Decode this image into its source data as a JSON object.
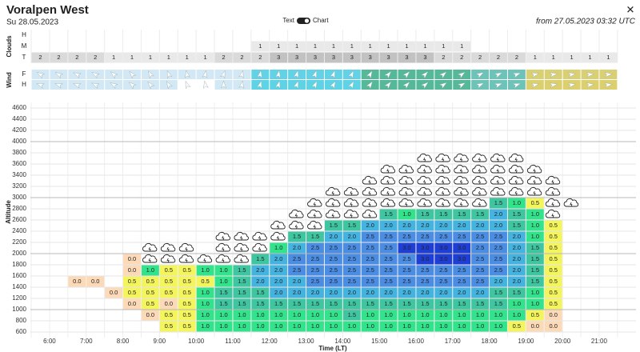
{
  "header": {
    "title": "Voralpen West",
    "date": "Su 28.05.2023",
    "toggle_left": "Text",
    "toggle_right": "Chart",
    "issued": "from 27.05.2023 03:32 UTC",
    "close": "✕"
  },
  "clouds": {
    "label": "Clouds",
    "row_labels": [
      "H",
      "M",
      "T"
    ],
    "rows": [
      [
        null,
        null,
        null,
        null,
        null,
        null,
        null,
        null,
        null,
        null,
        null,
        null,
        null,
        null,
        null,
        null,
        null,
        null,
        null,
        null,
        null,
        null,
        null,
        null,
        null,
        null,
        null,
        null,
        null,
        null,
        null,
        null
      ],
      [
        null,
        null,
        null,
        null,
        null,
        null,
        null,
        null,
        null,
        null,
        null,
        null,
        "1",
        "1",
        "1",
        "1",
        "1",
        "1",
        "1",
        "1",
        "1",
        "1",
        "1",
        "1",
        null,
        null,
        null,
        null,
        null,
        null,
        null,
        null
      ],
      [
        "2",
        "2",
        "2",
        "2",
        "1",
        "1",
        "1",
        "1",
        "1",
        "1",
        "2",
        "2",
        "2",
        "3",
        "3",
        "3",
        "3",
        "3",
        "3",
        "3",
        "3",
        "3",
        "2",
        "2",
        "2",
        "2",
        "2",
        "1",
        "1",
        "1",
        "1",
        "1"
      ]
    ],
    "colors": {
      "1": "#e9e9e9",
      "2": "#dadada",
      "3": "#c2c2c2"
    }
  },
  "wind": {
    "label": "Wind",
    "row_labels": [
      "F",
      "H"
    ],
    "rows": [
      {
        "colors": [
          "#d3e8f5",
          "#d3e8f5",
          "#d3e8f5",
          "#d3e8f5",
          "#d3e8f5",
          "#d3e8f5",
          "#d3e8f5",
          "#d3e8f5",
          "#d3e8f5",
          "#d3e8f5",
          "#d3e8f5",
          "#d3e8f5",
          "#62d2e6",
          "#62d2e6",
          "#62d2e6",
          "#62d2e6",
          "#62d2e6",
          "#62d2e6",
          "#55b898",
          "#55b898",
          "#55b898",
          "#55b898",
          "#55b898",
          "#55b898",
          "#6cc4b8",
          "#6cc4b8",
          "#6cc4b8",
          "#d9cf73",
          "#d9cf73",
          "#d9cf73",
          "#d9cf73",
          "#d9cf73"
        ],
        "directions": [
          300,
          300,
          295,
          300,
          310,
          320,
          330,
          340,
          350,
          10,
          20,
          15,
          10,
          10,
          15,
          20,
          20,
          25,
          30,
          40,
          45,
          45,
          50,
          55,
          60,
          65,
          70,
          75,
          80,
          80,
          85,
          85
        ]
      },
      {
        "colors": [
          "#d3e8f5",
          "#d3e8f5",
          "#d3e8f5",
          "#d3e8f5",
          "#d3e8f5",
          "#d3e8f5",
          "#d3e8f5",
          "#d3e8f5",
          "#ffffff",
          "#ffffff",
          "#d3e8f5",
          "#d3e8f5",
          "#5fd3e6",
          "#5fd3e6",
          "#5fd3e6",
          "#5fd3e6",
          "#5fd3e6",
          "#5fd3e6",
          "#55b898",
          "#55b898",
          "#55b898",
          "#55b898",
          "#55b898",
          "#55b898",
          "#6cc4b8",
          "#6cc4b8",
          "#6cc4b8",
          "#dccf6e",
          "#dccf6e",
          "#dccf6e",
          "#dccf6e",
          "#dccf6e"
        ],
        "directions": [
          290,
          290,
          290,
          295,
          300,
          310,
          320,
          330,
          340,
          350,
          0,
          10,
          15,
          15,
          20,
          25,
          30,
          30,
          35,
          40,
          45,
          50,
          55,
          60,
          65,
          70,
          70,
          75,
          80,
          80,
          85,
          85
        ]
      }
    ]
  },
  "thermals": {
    "label": "Altitude",
    "ticks": [
      600,
      800,
      1000,
      1200,
      1400,
      1600,
      1800,
      2000,
      2200,
      2400,
      2600,
      2800,
      3000,
      3200,
      3400,
      3600,
      3800,
      4000,
      4200,
      4400,
      4600
    ],
    "cell_colors": {
      "0.0": "#fcdab8",
      "0.5": "#f4f45c",
      "1.0": "#33e38c",
      "1.5": "#3fc6a0",
      "2.0": "#45b3df",
      "2.5": "#4a8de3",
      "3.0": "#1f3fd4"
    },
    "columns": [
      null,
      null,
      {
        "base": 1400,
        "cells": [
          "0.0"
        ]
      },
      {
        "base": 1400,
        "cells": [
          "0.0"
        ]
      },
      {
        "base": 1200,
        "cells": [
          "0.0"
        ]
      },
      {
        "base": 1000,
        "cells": [
          "0.0",
          "0.5",
          "0.5",
          "0.0",
          "0.0"
        ]
      },
      {
        "base": 800,
        "cells": [
          "0.0",
          "0.5",
          "0.5",
          "0.5",
          "1.0"
        ],
        "cloud_base": 1800,
        "cloud_top": 2200
      },
      {
        "base": 600,
        "cells": [
          "0.5",
          "0.5",
          "0.0",
          "0.5",
          "0.5",
          "0.5"
        ],
        "cloud_base": 1800,
        "cloud_top": 2200
      },
      {
        "base": 600,
        "cells": [
          "0.5",
          "0.5",
          "0.5",
          "0.5",
          "0.5",
          "0.5"
        ],
        "cloud_base": 1800,
        "cloud_top": 2200
      },
      {
        "base": 600,
        "cells": [
          "1.0",
          "1.0",
          "1.0",
          "1.0",
          "0.5",
          "1.0"
        ],
        "cloud_base": 1800,
        "cloud_top": 2000
      },
      {
        "base": 600,
        "cells": [
          "1.0",
          "1.0",
          "1.5",
          "1.5",
          "1.0",
          "1.0"
        ],
        "cloud_base": 1800,
        "cloud_top": 2400
      },
      {
        "base": 600,
        "cells": [
          "1.0",
          "1.0",
          "1.5",
          "1.5",
          "1.5",
          "1.5"
        ],
        "cloud_base": 1800,
        "cloud_top": 2400
      },
      {
        "base": 600,
        "cells": [
          "1.0",
          "1.0",
          "1.5",
          "1.5",
          "2.0",
          "2.0",
          "1.5"
        ],
        "cloud_base": 2000,
        "cloud_top": 2400
      },
      {
        "base": 600,
        "cells": [
          "1.0",
          "1.0",
          "1.5",
          "2.0",
          "2.0",
          "2.0",
          "2.0",
          "1.0"
        ],
        "cloud_base": 2200,
        "cloud_top": 2600
      },
      {
        "base": 600,
        "cells": [
          "1.0",
          "1.0",
          "1.5",
          "2.0",
          "2.0",
          "2.5",
          "2.5",
          "2.0",
          "1.5"
        ],
        "cloud_base": 2400,
        "cloud_top": 2800
      },
      {
        "base": 600,
        "cells": [
          "1.0",
          "1.0",
          "1.5",
          "2.0",
          "2.5",
          "2.5",
          "2.5",
          "2.5",
          "1.5"
        ],
        "cloud_base": 2400,
        "cloud_top": 3000
      },
      {
        "base": 600,
        "cells": [
          "1.0",
          "1.0",
          "1.5",
          "2.0",
          "2.5",
          "2.5",
          "2.5",
          "2.5",
          "2.0",
          "1.5"
        ],
        "cloud_base": 2600,
        "cloud_top": 3200
      },
      {
        "base": 600,
        "cells": [
          "1.0",
          "1.5",
          "1.5",
          "2.0",
          "2.5",
          "2.5",
          "2.5",
          "2.5",
          "2.0",
          "1.5"
        ],
        "cloud_base": 2600,
        "cloud_top": 3200
      },
      {
        "base": 600,
        "cells": [
          "1.0",
          "1.0",
          "1.5",
          "2.0",
          "2.5",
          "2.5",
          "2.5",
          "2.5",
          "2.5",
          "2.0"
        ],
        "cloud_base": 2600,
        "cloud_top": 3400
      },
      {
        "base": 600,
        "cells": [
          "1.0",
          "1.0",
          "1.5",
          "2.0",
          "2.5",
          "2.5",
          "2.5",
          "2.5",
          "2.5",
          "2.0",
          "1.5"
        ],
        "cloud_base": 2800,
        "cloud_top": 3600
      },
      {
        "base": 600,
        "cells": [
          "1.0",
          "1.0",
          "1.5",
          "2.0",
          "2.5",
          "2.5",
          "2.5",
          "3.0",
          "2.5",
          "2.0",
          "1.0"
        ],
        "cloud_base": 2800,
        "cloud_top": 3600
      },
      {
        "base": 600,
        "cells": [
          "1.0",
          "1.0",
          "1.5",
          "2.0",
          "2.5",
          "2.5",
          "3.0",
          "3.0",
          "2.5",
          "2.0",
          "1.5"
        ],
        "cloud_base": 2800,
        "cloud_top": 3800
      },
      {
        "base": 600,
        "cells": [
          "1.0",
          "1.0",
          "1.5",
          "2.0",
          "2.5",
          "2.5",
          "3.0",
          "3.0",
          "2.5",
          "2.0",
          "1.5"
        ],
        "cloud_base": 2800,
        "cloud_top": 3800
      },
      {
        "base": 600,
        "cells": [
          "1.0",
          "1.0",
          "1.5",
          "2.0",
          "2.5",
          "2.5",
          "3.0",
          "3.0",
          "2.5",
          "2.0",
          "1.5"
        ],
        "cloud_base": 2800,
        "cloud_top": 3800
      },
      {
        "base": 600,
        "cells": [
          "1.0",
          "1.0",
          "1.5",
          "2.0",
          "2.5",
          "2.5",
          "2.5",
          "2.5",
          "2.5",
          "2.0",
          "1.5"
        ],
        "cloud_base": 2800,
        "cloud_top": 3800
      },
      {
        "base": 600,
        "cells": [
          "1.0",
          "1.0",
          "1.5",
          "1.5",
          "2.0",
          "2.5",
          "2.5",
          "2.5",
          "2.5",
          "2.0",
          "2.0",
          "1.5"
        ],
        "cloud_base": 3000,
        "cloud_top": 3800
      },
      {
        "base": 600,
        "cells": [
          "0.5",
          "1.0",
          "1.0",
          "1.5",
          "2.0",
          "2.0",
          "2.0",
          "2.0",
          "2.0",
          "1.5",
          "1.5",
          "1.0"
        ],
        "cloud_base": 3000,
        "cloud_top": 3800
      },
      {
        "base": 600,
        "cells": [
          "0.0",
          "0.5",
          "1.0",
          "1.0",
          "1.5",
          "1.5",
          "1.5",
          "1.5",
          "1.0",
          "1.0",
          "1.0",
          "0.5"
        ],
        "cloud_base": 3000,
        "cloud_top": 3600
      },
      {
        "base": 600,
        "cells": [
          "0.0",
          "0.0",
          "0.5",
          "0.5",
          "0.5",
          "0.5",
          "0.5",
          "0.5",
          "0.5",
          "0.5"
        ],
        "cloud_base": 2600,
        "cloud_top": 3400
      },
      {
        "cloud_base": 2800,
        "cloud_top": 3000
      },
      null,
      null
    ]
  },
  "time": {
    "label": "Time (LT)",
    "ticks": [
      "6:00",
      "7:00",
      "8:00",
      "9:00",
      "10:00",
      "11:00",
      "12:00",
      "13:00",
      "14:00",
      "15:00",
      "16:00",
      "17:00",
      "18:00",
      "19:00",
      "20:00",
      "21:00"
    ]
  }
}
